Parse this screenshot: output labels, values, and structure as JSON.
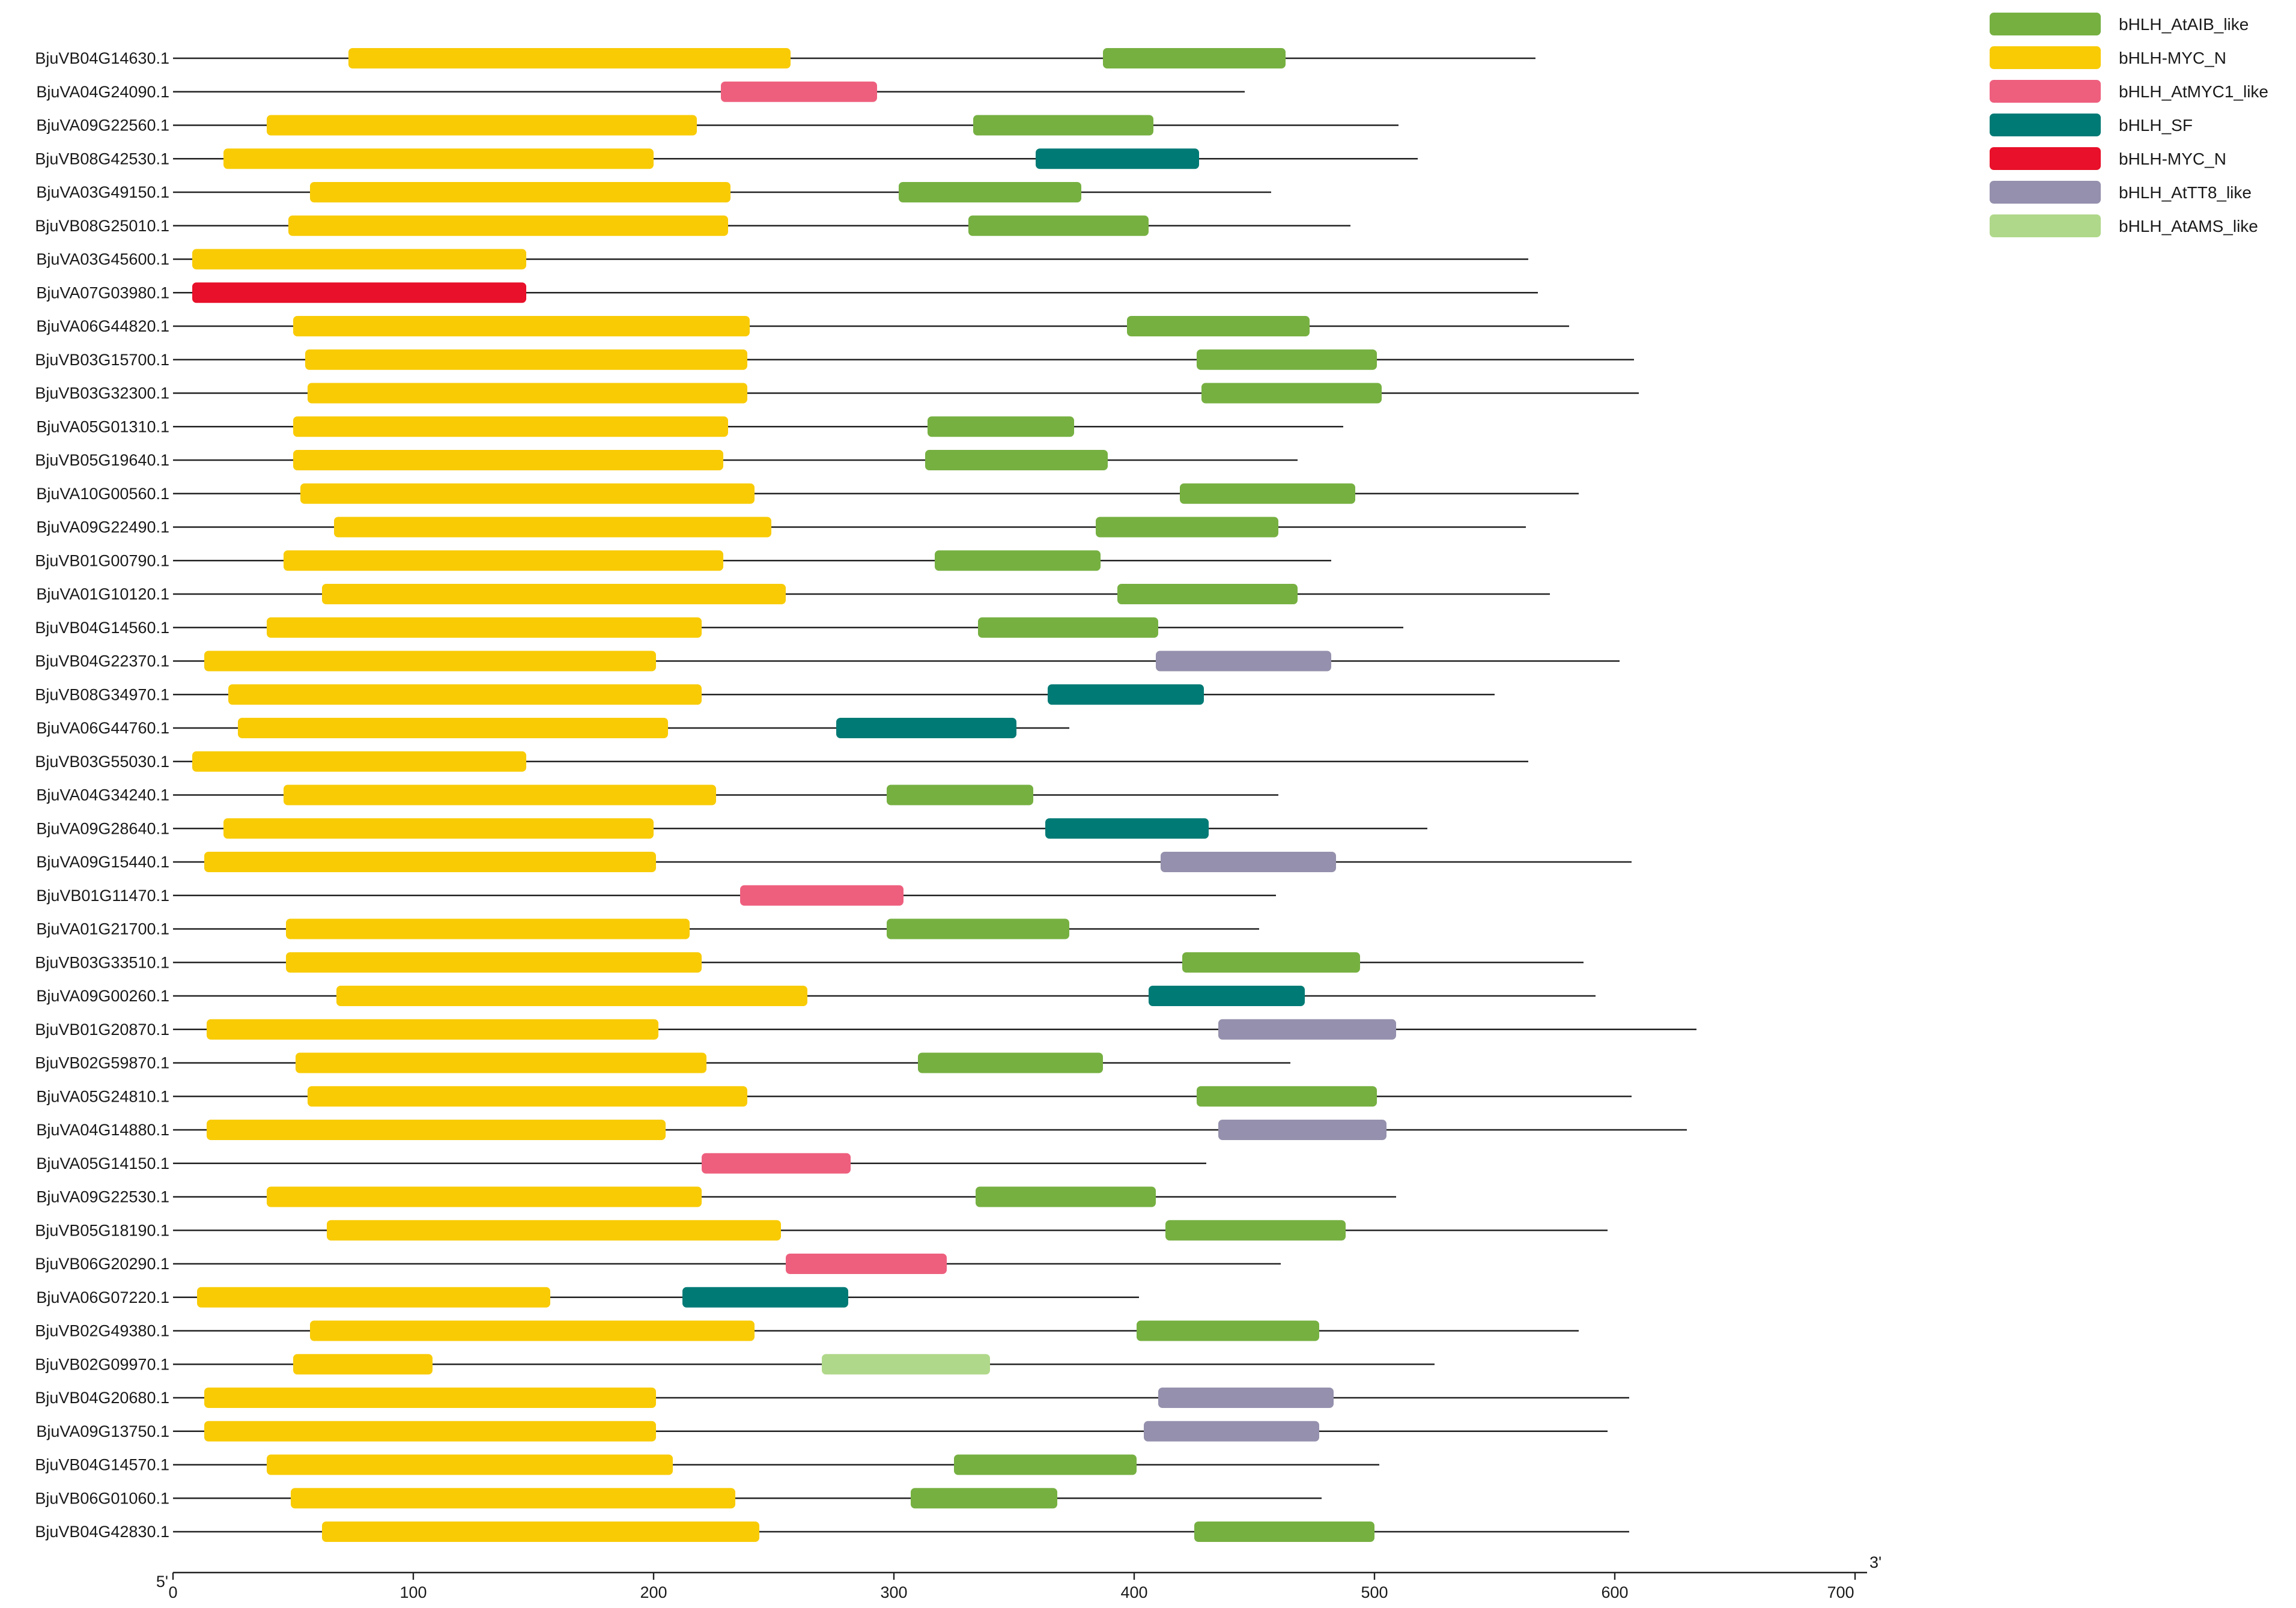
{
  "chart_data": {
    "type": "domain-diagram",
    "axis": {
      "min": 0,
      "max": 700,
      "ticks": [
        0,
        100,
        200,
        300,
        400,
        500,
        600,
        700
      ],
      "start_label": "5'",
      "end_label": "3'"
    },
    "legend": [
      {
        "key": "AtAIB",
        "label": "bHLH_AtAIB_like",
        "color": "#76b041"
      },
      {
        "key": "MYC",
        "label": "bHLH-MYC_N",
        "color": "#f9cb05"
      },
      {
        "key": "AtMYC1",
        "label": "bHLH_AtMYC1_like",
        "color": "#ee5f7e"
      },
      {
        "key": "SF",
        "label": "bHLH_SF",
        "color": "#007a75"
      },
      {
        "key": "MYC2",
        "label": "bHLH-MYC_N",
        "color": "#e8102a"
      },
      {
        "key": "AtTT8",
        "label": "bHLH_AtTT8_like",
        "color": "#9590ad"
      },
      {
        "key": "AtAMS",
        "label": "bHLH_AtAMS_like",
        "color": "#b0d88a"
      }
    ],
    "sequences": [
      {
        "id": "BjuVB04G14630.1",
        "length": 567,
        "domains": [
          [
            "MYC",
            73,
            257
          ],
          [
            "AtAIB",
            387,
            463
          ]
        ]
      },
      {
        "id": "BjuVA04G24090.1",
        "length": 446,
        "domains": [
          [
            "AtMYC1",
            228,
            293
          ]
        ]
      },
      {
        "id": "BjuVA09G22560.1",
        "length": 510,
        "domains": [
          [
            "MYC",
            39,
            218
          ],
          [
            "AtAIB",
            333,
            408
          ]
        ]
      },
      {
        "id": "BjuVB08G42530.1",
        "length": 518,
        "domains": [
          [
            "MYC",
            21,
            200
          ],
          [
            "SF",
            359,
            427
          ]
        ]
      },
      {
        "id": "BjuVA03G49150.1",
        "length": 457,
        "domains": [
          [
            "MYC",
            57,
            232
          ],
          [
            "AtAIB",
            302,
            378
          ]
        ]
      },
      {
        "id": "BjuVB08G25010.1",
        "length": 490,
        "domains": [
          [
            "MYC",
            48,
            231
          ],
          [
            "AtAIB",
            331,
            406
          ]
        ]
      },
      {
        "id": "BjuVA03G45600.1",
        "length": 564,
        "domains": [
          [
            "MYC",
            8,
            147
          ]
        ]
      },
      {
        "id": "BjuVA07G03980.1",
        "length": 568,
        "domains": [
          [
            "MYC2",
            8,
            147
          ]
        ]
      },
      {
        "id": "BjuVA06G44820.1",
        "length": 581,
        "domains": [
          [
            "MYC",
            50,
            240
          ],
          [
            "AtAIB",
            397,
            473
          ]
        ]
      },
      {
        "id": "BjuVB03G15700.1",
        "length": 608,
        "domains": [
          [
            "MYC",
            55,
            239
          ],
          [
            "AtAIB",
            426,
            501
          ]
        ]
      },
      {
        "id": "BjuVB03G32300.1",
        "length": 610,
        "domains": [
          [
            "MYC",
            56,
            239
          ],
          [
            "AtAIB",
            428,
            503
          ]
        ]
      },
      {
        "id": "BjuVA05G01310.1",
        "length": 487,
        "domains": [
          [
            "MYC",
            50,
            231
          ],
          [
            "AtAIB",
            314,
            375
          ]
        ]
      },
      {
        "id": "BjuVB05G19640.1",
        "length": 468,
        "domains": [
          [
            "MYC",
            50,
            229
          ],
          [
            "AtAIB",
            313,
            389
          ]
        ]
      },
      {
        "id": "BjuVA10G00560.1",
        "length": 585,
        "domains": [
          [
            "MYC",
            53,
            242
          ],
          [
            "AtAIB",
            419,
            492
          ]
        ]
      },
      {
        "id": "BjuVA09G22490.1",
        "length": 563,
        "domains": [
          [
            "MYC",
            67,
            249
          ],
          [
            "AtAIB",
            384,
            460
          ]
        ]
      },
      {
        "id": "BjuVB01G00790.1",
        "length": 482,
        "domains": [
          [
            "MYC",
            46,
            229
          ],
          [
            "AtAIB",
            317,
            386
          ]
        ]
      },
      {
        "id": "BjuVA01G10120.1",
        "length": 573,
        "domains": [
          [
            "MYC",
            62,
            255
          ],
          [
            "AtAIB",
            393,
            468
          ]
        ]
      },
      {
        "id": "BjuVB04G14560.1",
        "length": 512,
        "domains": [
          [
            "MYC",
            39,
            220
          ],
          [
            "AtAIB",
            335,
            410
          ]
        ]
      },
      {
        "id": "BjuVB04G22370.1",
        "length": 602,
        "domains": [
          [
            "MYC",
            13,
            201
          ],
          [
            "AtTT8",
            409,
            482
          ]
        ]
      },
      {
        "id": "BjuVB08G34970.1",
        "length": 550,
        "domains": [
          [
            "MYC",
            23,
            220
          ],
          [
            "SF",
            364,
            429
          ]
        ]
      },
      {
        "id": "BjuVA06G44760.1",
        "length": 373,
        "domains": [
          [
            "MYC",
            27,
            206
          ],
          [
            "SF",
            276,
            351
          ]
        ]
      },
      {
        "id": "BjuVB03G55030.1",
        "length": 564,
        "domains": [
          [
            "MYC",
            8,
            147
          ]
        ]
      },
      {
        "id": "BjuVA04G34240.1",
        "length": 460,
        "domains": [
          [
            "MYC",
            46,
            226
          ],
          [
            "AtAIB",
            297,
            358
          ]
        ]
      },
      {
        "id": "BjuVA09G28640.1",
        "length": 522,
        "domains": [
          [
            "MYC",
            21,
            200
          ],
          [
            "SF",
            363,
            431
          ]
        ]
      },
      {
        "id": "BjuVA09G15440.1",
        "length": 607,
        "domains": [
          [
            "MYC",
            13,
            201
          ],
          [
            "AtTT8",
            411,
            484
          ]
        ]
      },
      {
        "id": "BjuVB01G11470.1",
        "length": 459,
        "domains": [
          [
            "AtMYC1",
            236,
            304
          ]
        ]
      },
      {
        "id": "BjuVA01G21700.1",
        "length": 452,
        "domains": [
          [
            "MYC",
            47,
            215
          ],
          [
            "AtAIB",
            297,
            373
          ]
        ]
      },
      {
        "id": "BjuVB03G33510.1",
        "length": 587,
        "domains": [
          [
            "MYC",
            47,
            220
          ],
          [
            "AtAIB",
            420,
            494
          ]
        ]
      },
      {
        "id": "BjuVA09G00260.1",
        "length": 592,
        "domains": [
          [
            "MYC",
            68,
            264
          ],
          [
            "SF",
            406,
            471
          ]
        ]
      },
      {
        "id": "BjuVB01G20870.1",
        "length": 634,
        "domains": [
          [
            "MYC",
            14,
            202
          ],
          [
            "AtTT8",
            435,
            509
          ]
        ]
      },
      {
        "id": "BjuVB02G59870.1",
        "length": 465,
        "domains": [
          [
            "MYC",
            51,
            222
          ],
          [
            "AtAIB",
            310,
            387
          ]
        ]
      },
      {
        "id": "BjuVA05G24810.1",
        "length": 607,
        "domains": [
          [
            "MYC",
            56,
            239
          ],
          [
            "AtAIB",
            426,
            501
          ]
        ]
      },
      {
        "id": "BjuVA04G14880.1",
        "length": 630,
        "domains": [
          [
            "MYC",
            14,
            205
          ],
          [
            "AtTT8",
            435,
            505
          ]
        ]
      },
      {
        "id": "BjuVA05G14150.1",
        "length": 430,
        "domains": [
          [
            "AtMYC1",
            220,
            282
          ]
        ]
      },
      {
        "id": "BjuVA09G22530.1",
        "length": 509,
        "domains": [
          [
            "MYC",
            39,
            220
          ],
          [
            "AtAIB",
            334,
            409
          ]
        ]
      },
      {
        "id": "BjuVB05G18190.1",
        "length": 597,
        "domains": [
          [
            "MYC",
            64,
            253
          ],
          [
            "AtAIB",
            413,
            488
          ]
        ]
      },
      {
        "id": "BjuVB06G20290.1",
        "length": 461,
        "domains": [
          [
            "AtMYC1",
            255,
            322
          ]
        ]
      },
      {
        "id": "BjuVA06G07220.1",
        "length": 402,
        "domains": [
          [
            "MYC",
            10,
            157
          ],
          [
            "SF",
            212,
            281
          ]
        ]
      },
      {
        "id": "BjuVB02G49380.1",
        "length": 585,
        "domains": [
          [
            "MYC",
            57,
            242
          ],
          [
            "AtAIB",
            401,
            477
          ]
        ]
      },
      {
        "id": "BjuVB02G09970.1",
        "length": 525,
        "domains": [
          [
            "MYC",
            50,
            108
          ],
          [
            "AtAMS",
            270,
            340
          ]
        ]
      },
      {
        "id": "BjuVB04G20680.1",
        "length": 606,
        "domains": [
          [
            "MYC",
            13,
            201
          ],
          [
            "AtTT8",
            410,
            483
          ]
        ]
      },
      {
        "id": "BjuVA09G13750.1",
        "length": 597,
        "domains": [
          [
            "MYC",
            13,
            201
          ],
          [
            "AtTT8",
            404,
            477
          ]
        ]
      },
      {
        "id": "BjuVB04G14570.1",
        "length": 502,
        "domains": [
          [
            "MYC",
            39,
            208
          ],
          [
            "AtAIB",
            325,
            401
          ]
        ]
      },
      {
        "id": "BjuVB06G01060.1",
        "length": 478,
        "domains": [
          [
            "MYC",
            49,
            234
          ],
          [
            "AtAIB",
            307,
            368
          ]
        ]
      },
      {
        "id": "BjuVB04G42830.1",
        "length": 606,
        "domains": [
          [
            "MYC",
            62,
            244
          ],
          [
            "AtAIB",
            425,
            500
          ]
        ]
      }
    ]
  }
}
